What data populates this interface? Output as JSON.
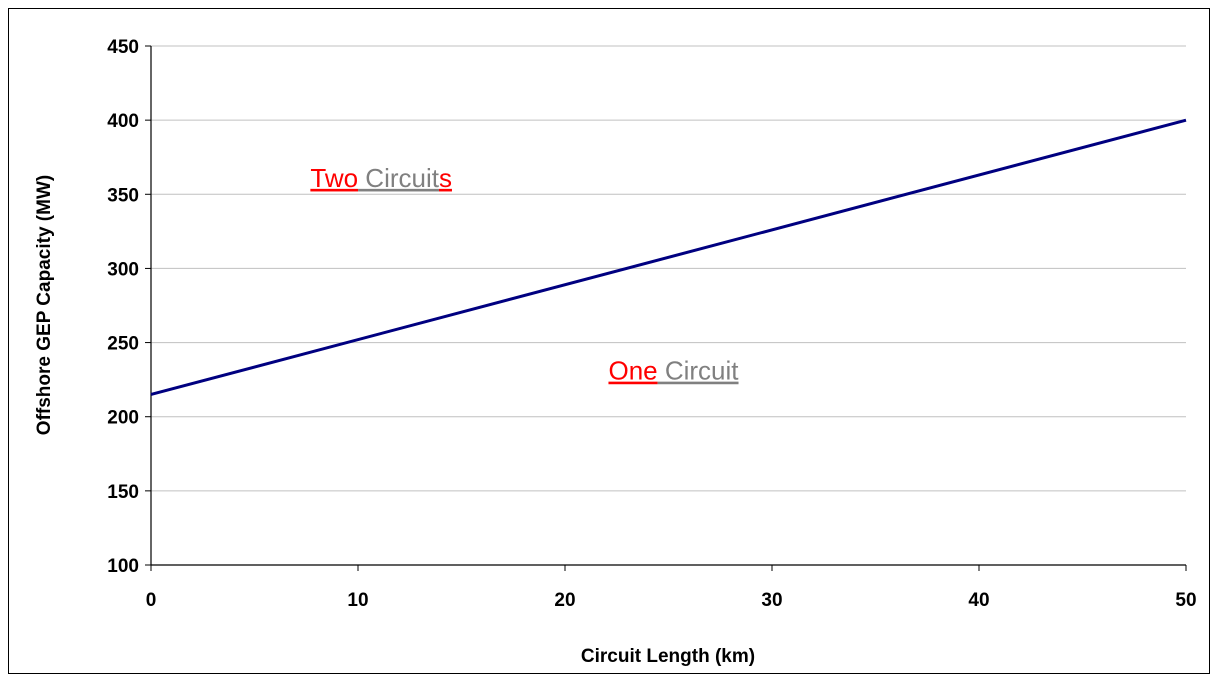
{
  "chart_data": {
    "type": "line",
    "title": "",
    "xlabel": "Circuit Length (km)",
    "ylabel": "Offshore GEP Capacity (MW)",
    "xlim": [
      0,
      50
    ],
    "ylim": [
      100,
      450
    ],
    "xticks": [
      0,
      10,
      20,
      30,
      40,
      50
    ],
    "yticks": [
      100,
      150,
      200,
      250,
      300,
      350,
      400,
      450
    ],
    "grid": true,
    "legend": "none",
    "series": [
      {
        "x": [
          0,
          50
        ],
        "y": [
          215,
          400
        ],
        "color": "#000080"
      }
    ],
    "annotations": [
      {
        "parts": [
          {
            "text": "Two",
            "color": "#ff0000"
          },
          {
            "text": " Circuit",
            "color": "#808080"
          },
          {
            "text": "s",
            "color": "#ff0000"
          }
        ],
        "x": 7.7,
        "y": 355
      },
      {
        "parts": [
          {
            "text": "One",
            "color": "#ff0000"
          },
          {
            "text": " Circuit",
            "color": "#808080"
          }
        ],
        "x": 22.1,
        "y": 225
      }
    ],
    "colors": {
      "line": "#000080",
      "grid": "#c0c0c0",
      "axis": "#000000"
    }
  }
}
